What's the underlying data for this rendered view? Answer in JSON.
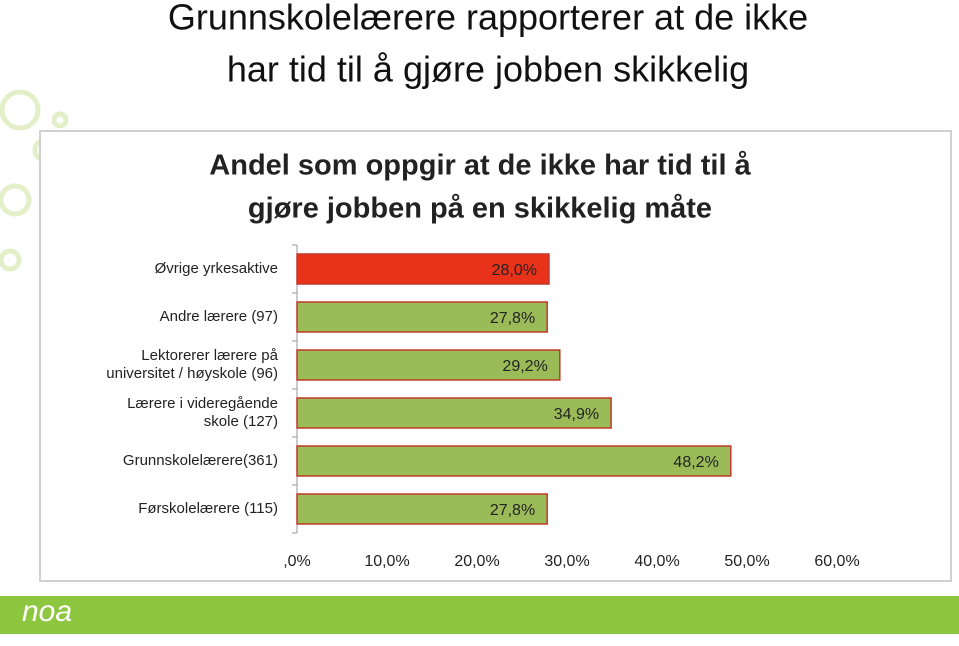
{
  "slide_title": [
    "Grunnskolelærere rapporterer at de ikke",
    "har tid til å gjøre jobben skikkelig"
  ],
  "logo": "noa",
  "chart_data": {
    "type": "bar",
    "orientation": "horizontal",
    "title": [
      "Andel som oppgir at de ikke har tid til å",
      "gjøre jobben på en skikkelig måte"
    ],
    "categories": [
      "Øvrige yrkesaktive",
      "Andre lærere (97)",
      "Lektorerer lærere på\nuniversitet / høyskole (96)",
      "Lærere i videregående\nskole (127)",
      "Grunnskolelærere(361)",
      "Førskolelærere (115)"
    ],
    "values": [
      28.0,
      27.8,
      29.2,
      34.9,
      48.2,
      27.8
    ],
    "value_labels": [
      "28,0%",
      "27,8%",
      "29,2%",
      "34,9%",
      "48,2%",
      "27,8%"
    ],
    "colors": [
      "#e8321a",
      "#9bbb59",
      "#9bbb59",
      "#9bbb59",
      "#9bbb59",
      "#9bbb59"
    ],
    "bar_border": "#c0392b",
    "xlim": [
      0,
      60
    ],
    "xticks": [
      {
        "value": 0,
        "label": ",0%"
      },
      {
        "value": 10,
        "label": "10,0%"
      },
      {
        "value": 20,
        "label": "20,0%"
      },
      {
        "value": 30,
        "label": "30,0%"
      },
      {
        "value": 40,
        "label": "40,0%"
      },
      {
        "value": 50,
        "label": "50,0%"
      },
      {
        "value": 60,
        "label": "60,0%"
      }
    ],
    "grid": false
  }
}
